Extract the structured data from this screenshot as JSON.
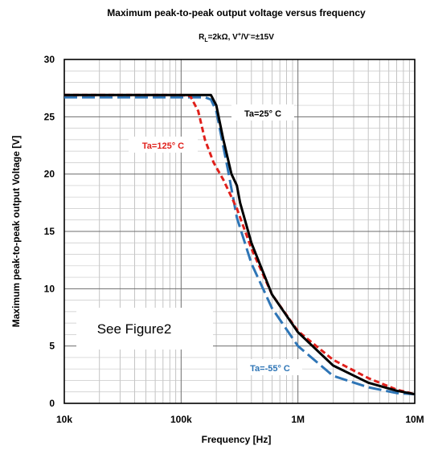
{
  "chart_data": {
    "type": "line",
    "title": "Maximum peak-to-peak output voltage versus frequency",
    "subtitle": {
      "prefix": "R",
      "sub": "L",
      "middle": "=2kΩ, V",
      "sup1": "+",
      "slash": "/V",
      "sup2": "-",
      "suffix": "=±15V"
    },
    "xlabel": "Frequency [Hz]",
    "ylabel": "Maximum peak-to-peak output Voltage [V]",
    "x_scale": "log",
    "xlim": [
      10000,
      10000000
    ],
    "ylim": [
      0,
      30
    ],
    "x_ticks": [
      {
        "value": 10000,
        "label": "10k"
      },
      {
        "value": 100000,
        "label": "100k"
      },
      {
        "value": 1000000,
        "label": "1M"
      },
      {
        "value": 10000000,
        "label": "10M"
      }
    ],
    "y_ticks": [
      {
        "value": 0,
        "label": "0"
      },
      {
        "value": 5,
        "label": "5"
      },
      {
        "value": 10,
        "label": "10"
      },
      {
        "value": 15,
        "label": "15"
      },
      {
        "value": 20,
        "label": "20"
      },
      {
        "value": 25,
        "label": "25"
      },
      {
        "value": 30,
        "label": "30"
      }
    ],
    "grid": true,
    "series": [
      {
        "name": "Ta=-55° C",
        "color": "#2e75b6",
        "dash": "dashed-long",
        "x": [
          10000,
          30000,
          100000,
          160000,
          180000,
          200000,
          250000,
          300000,
          400000,
          600000,
          1000000,
          2000000,
          4000000,
          7000000,
          10000000
        ],
        "y": [
          26.7,
          26.7,
          26.7,
          26.7,
          26.5,
          25.5,
          20.5,
          16.2,
          12.2,
          8.3,
          5.0,
          2.4,
          1.4,
          0.9,
          0.8
        ]
      },
      {
        "name": "Ta=25° C",
        "color": "#000000",
        "dash": "solid",
        "x": [
          10000,
          30000,
          100000,
          180000,
          200000,
          230000,
          270000,
          300000,
          320000,
          400000,
          600000,
          1000000,
          2000000,
          4000000,
          7000000,
          10000000
        ],
        "y": [
          26.9,
          26.9,
          26.9,
          26.9,
          26.0,
          23.0,
          20.0,
          19.0,
          17.5,
          14.0,
          9.5,
          6.2,
          3.3,
          1.8,
          1.1,
          0.8
        ]
      },
      {
        "name": "Ta=125° C",
        "color": "#e0201b",
        "dash": "dashed-short",
        "x": [
          10000,
          50000,
          100000,
          120000,
          140000,
          160000,
          190000,
          230000,
          300000,
          400000,
          600000,
          1000000,
          2000000,
          4000000,
          7000000,
          10000000
        ],
        "y": [
          26.9,
          26.9,
          26.9,
          26.8,
          25.5,
          23.0,
          21.0,
          19.5,
          17.0,
          13.5,
          9.5,
          6.3,
          3.8,
          2.2,
          1.2,
          0.8
        ]
      }
    ],
    "annotations": {
      "see_figure": "See Figure2",
      "label_25": "Ta=25° C",
      "label_125": "Ta=125° C",
      "label_m55": "Ta=-55° C"
    }
  }
}
